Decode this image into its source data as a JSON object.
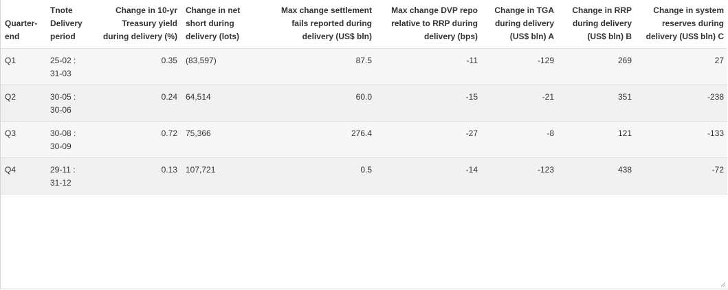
{
  "table": {
    "headers": [
      "Quarter-end",
      "Tnote Delivery period",
      "Change in 10-yr Treasury yield during delivery (%)",
      "Change in net short during delivery (lots)",
      "Max change settlement fails reported during delivery (US$ bln)",
      "Max change DVP repo relative to RRP during delivery (bps)",
      "Change in TGA during delivery (US$ bln) A",
      "Change in RRP during delivery (US$ bln) B",
      "Change in system reserves during delivery (US$ bln) C"
    ],
    "rows": [
      [
        "Q1",
        "25-02 : 31-03",
        "0.35",
        "(83,597)",
        "87.5",
        "-11",
        "-129",
        "269",
        "27"
      ],
      [
        "Q2",
        "30-05 : 30-06",
        "0.24",
        "64,514",
        "60.0",
        "-15",
        "-21",
        "351",
        "-238"
      ],
      [
        "Q3",
        "30-08 : 30-09",
        "0.72",
        "75,366",
        "276.4",
        "-27",
        "-8",
        "121",
        "-133"
      ],
      [
        "Q4",
        "29-11 : 31-12",
        "0.13",
        "107,721",
        "0.5",
        "-14",
        "-123",
        "438",
        "-72"
      ]
    ]
  }
}
